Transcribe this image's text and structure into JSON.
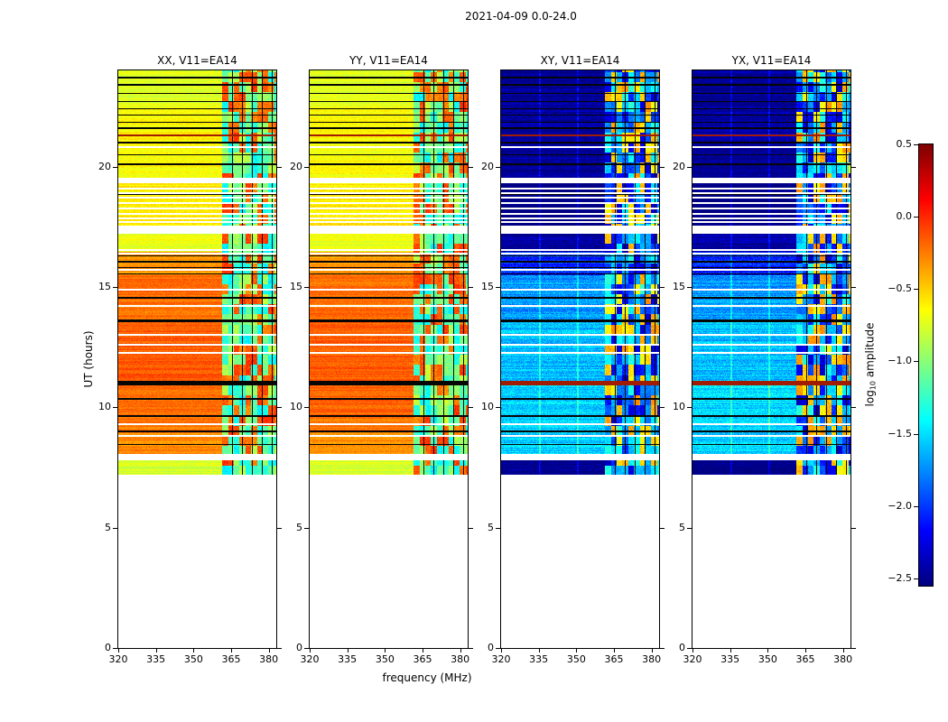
{
  "chart_data": {
    "type": "heatmap",
    "title": "2021-04-09 0.0-24.0",
    "xlabel": "frequency (MHz)",
    "ylabel": "UT (hours)",
    "x_range": [
      320,
      383
    ],
    "y_range": [
      0,
      24
    ],
    "x_ticks": [
      320,
      335,
      350,
      365,
      380
    ],
    "y_ticks": [
      0,
      5,
      10,
      15,
      20
    ],
    "panels": [
      {
        "id": "xx",
        "title": "XX, V11=EA14",
        "kind": "parallel"
      },
      {
        "id": "yy",
        "title": "YY, V11=EA14",
        "kind": "parallel"
      },
      {
        "id": "xy",
        "title": "XY, V11=EA14",
        "kind": "cross"
      },
      {
        "id": "yx",
        "title": "YX, V11=EA14",
        "kind": "cross"
      }
    ],
    "colorbar": {
      "label_pre": "log",
      "label_sub": "10",
      "label_post": " amplitude",
      "tick_labels": [
        "0.5",
        "0.0",
        "−0.5",
        "−1.0",
        "−1.5",
        "−2.0",
        "−2.5"
      ],
      "tick_values": [
        0.5,
        0.0,
        -0.5,
        -1.0,
        -1.5,
        -2.0,
        -2.5
      ],
      "vmin": -2.55,
      "vmax": 0.5,
      "colormap": "jet"
    },
    "time_coverage": [
      7.2,
      24.0
    ],
    "gaps": [
      [
        7.8,
        8.05
      ],
      [
        17.2,
        17.55
      ],
      [
        19.3,
        19.55
      ]
    ],
    "bands": [
      {
        "t0": 7.2,
        "t1": 7.8,
        "parallel": -0.62,
        "cross": -2.3
      },
      {
        "t0": 8.05,
        "t1": 9.0,
        "parallel": -0.15,
        "cross": -1.3
      },
      {
        "t0": 9.0,
        "t1": 9.65,
        "parallel": -0.08,
        "cross": -1.3
      },
      {
        "t0": 9.65,
        "t1": 11.0,
        "parallel": -0.04,
        "cross": -1.25
      },
      {
        "t0": 11.0,
        "t1": 13.6,
        "parallel": 0.0,
        "cross": -1.35
      },
      {
        "t0": 13.6,
        "t1": 15.5,
        "parallel": -0.07,
        "cross": -1.45
      },
      {
        "t0": 15.5,
        "t1": 16.45,
        "parallel": -0.18,
        "cross": -1.8
      },
      {
        "t0": 16.45,
        "t1": 17.2,
        "parallel": -0.55,
        "cross": -2.2
      },
      {
        "t0": 17.55,
        "t1": 19.3,
        "parallel": -0.44,
        "cross": -2.35
      },
      {
        "t0": 19.55,
        "t1": 21.0,
        "parallel": -0.5,
        "cross": -2.25
      },
      {
        "t0": 21.0,
        "t1": 22.5,
        "parallel": -0.47,
        "cross": -2.2
      },
      {
        "t0": 22.5,
        "t1": 24.0,
        "parallel": -0.58,
        "cross": -2.25
      }
    ],
    "dark_lines": [
      {
        "t": 8.45,
        "w": 0.03
      },
      {
        "t": 9.0,
        "w": 0.03
      },
      {
        "t": 9.65,
        "w": 0.04
      },
      {
        "t": 10.35,
        "w": 0.03
      },
      {
        "t": 11.0,
        "w": 0.09,
        "cross_red": true
      },
      {
        "t": 13.6,
        "w": 0.06
      },
      {
        "t": 14.55,
        "w": 0.03
      },
      {
        "t": 15.55,
        "w": 0.03
      },
      {
        "t": 15.8,
        "w": 0.03
      },
      {
        "t": 16.05,
        "w": 0.03
      },
      {
        "t": 16.3,
        "w": 0.03
      },
      {
        "t": 18.85,
        "w": 0.025
      },
      {
        "t": 20.1,
        "w": 0.03
      },
      {
        "t": 20.5,
        "w": 0.03
      },
      {
        "t": 21.0,
        "w": 0.03
      },
      {
        "t": 21.3,
        "w": 0.05,
        "red": true
      },
      {
        "t": 21.6,
        "w": 0.03
      },
      {
        "t": 21.85,
        "w": 0.03
      },
      {
        "t": 22.15,
        "w": 0.03
      },
      {
        "t": 22.4,
        "w": 0.03
      },
      {
        "t": 22.7,
        "w": 0.03
      },
      {
        "t": 23.05,
        "w": 0.03
      },
      {
        "t": 23.4,
        "w": 0.03
      },
      {
        "t": 23.7,
        "w": 0.03
      }
    ],
    "white_lines": [
      8.8,
      9.3,
      12.25,
      12.6,
      13.0,
      14.2,
      14.9,
      15.7,
      16.4,
      16.55,
      17.7,
      17.85,
      18.05,
      18.25,
      18.5,
      18.7,
      18.9,
      19.1,
      20.8
    ],
    "rfi": {
      "f0": 361.5,
      "f1": 383,
      "dark_vlines": [
        365.5,
        369.5,
        373.5,
        377.5,
        381.3
      ],
      "block_dt": 0.42,
      "block_df": 2.3
    },
    "cross_vlines": [
      335.5,
      350.5
    ]
  }
}
